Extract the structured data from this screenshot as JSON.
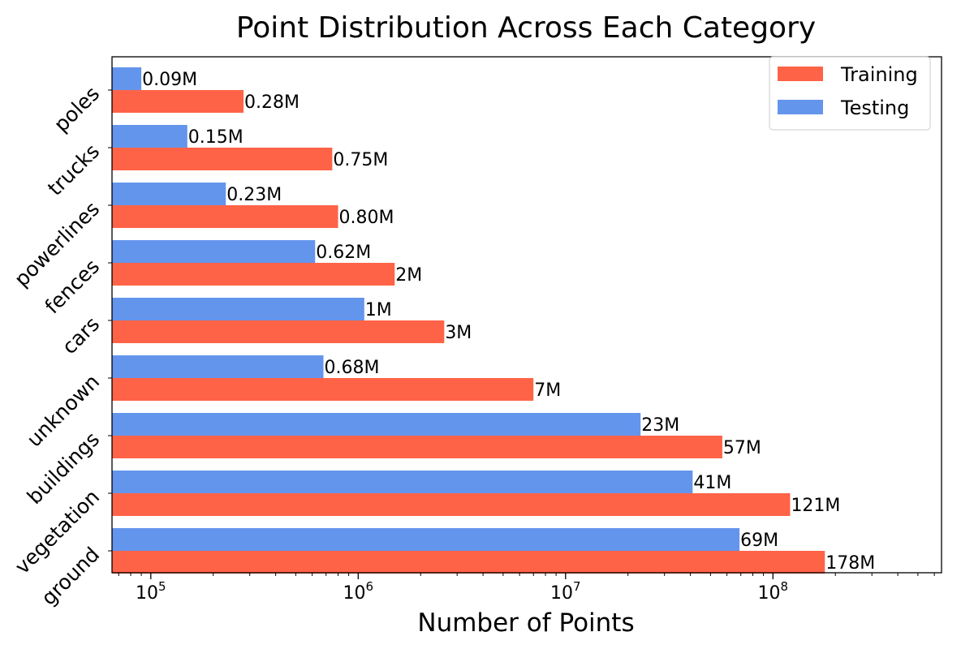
{
  "chart_data": {
    "type": "bar",
    "orientation": "horizontal",
    "title": "Point Distribution Across Each Category",
    "xlabel": "Number of Points",
    "ylabel": "",
    "xscale": "log",
    "xlim": [
      65000,
      650000000
    ],
    "x_ticks": [
      {
        "value": 100000,
        "base": "10",
        "exp": "5"
      },
      {
        "value": 1000000,
        "base": "10",
        "exp": "6"
      },
      {
        "value": 10000000,
        "base": "10",
        "exp": "7"
      },
      {
        "value": 100000000,
        "base": "10",
        "exp": "8"
      }
    ],
    "categories": [
      "poles",
      "trucks",
      "powerlines",
      "fences",
      "cars",
      "unknown",
      "buildings",
      "vegetation",
      "ground"
    ],
    "series": [
      {
        "name": "Training",
        "color": "#ff6347",
        "values": [
          280000,
          750000,
          800000,
          1500000,
          2600000,
          7000000,
          57000000,
          121000000,
          178000000
        ],
        "labels": [
          "0.28M",
          "0.75M",
          "0.80M",
          "2M",
          "3M",
          "7M",
          "57M",
          "121M",
          "178M"
        ]
      },
      {
        "name": "Testing",
        "color": "#6495ed",
        "values": [
          90000,
          150000,
          230000,
          620000,
          1070000,
          680000,
          23000000,
          41000000,
          69000000
        ],
        "labels": [
          "0.09M",
          "0.15M",
          "0.23M",
          "0.62M",
          "1M",
          "0.68M",
          "23M",
          "41M",
          "69M"
        ]
      }
    ],
    "legend": {
      "position": "top-right"
    },
    "grid": false
  }
}
